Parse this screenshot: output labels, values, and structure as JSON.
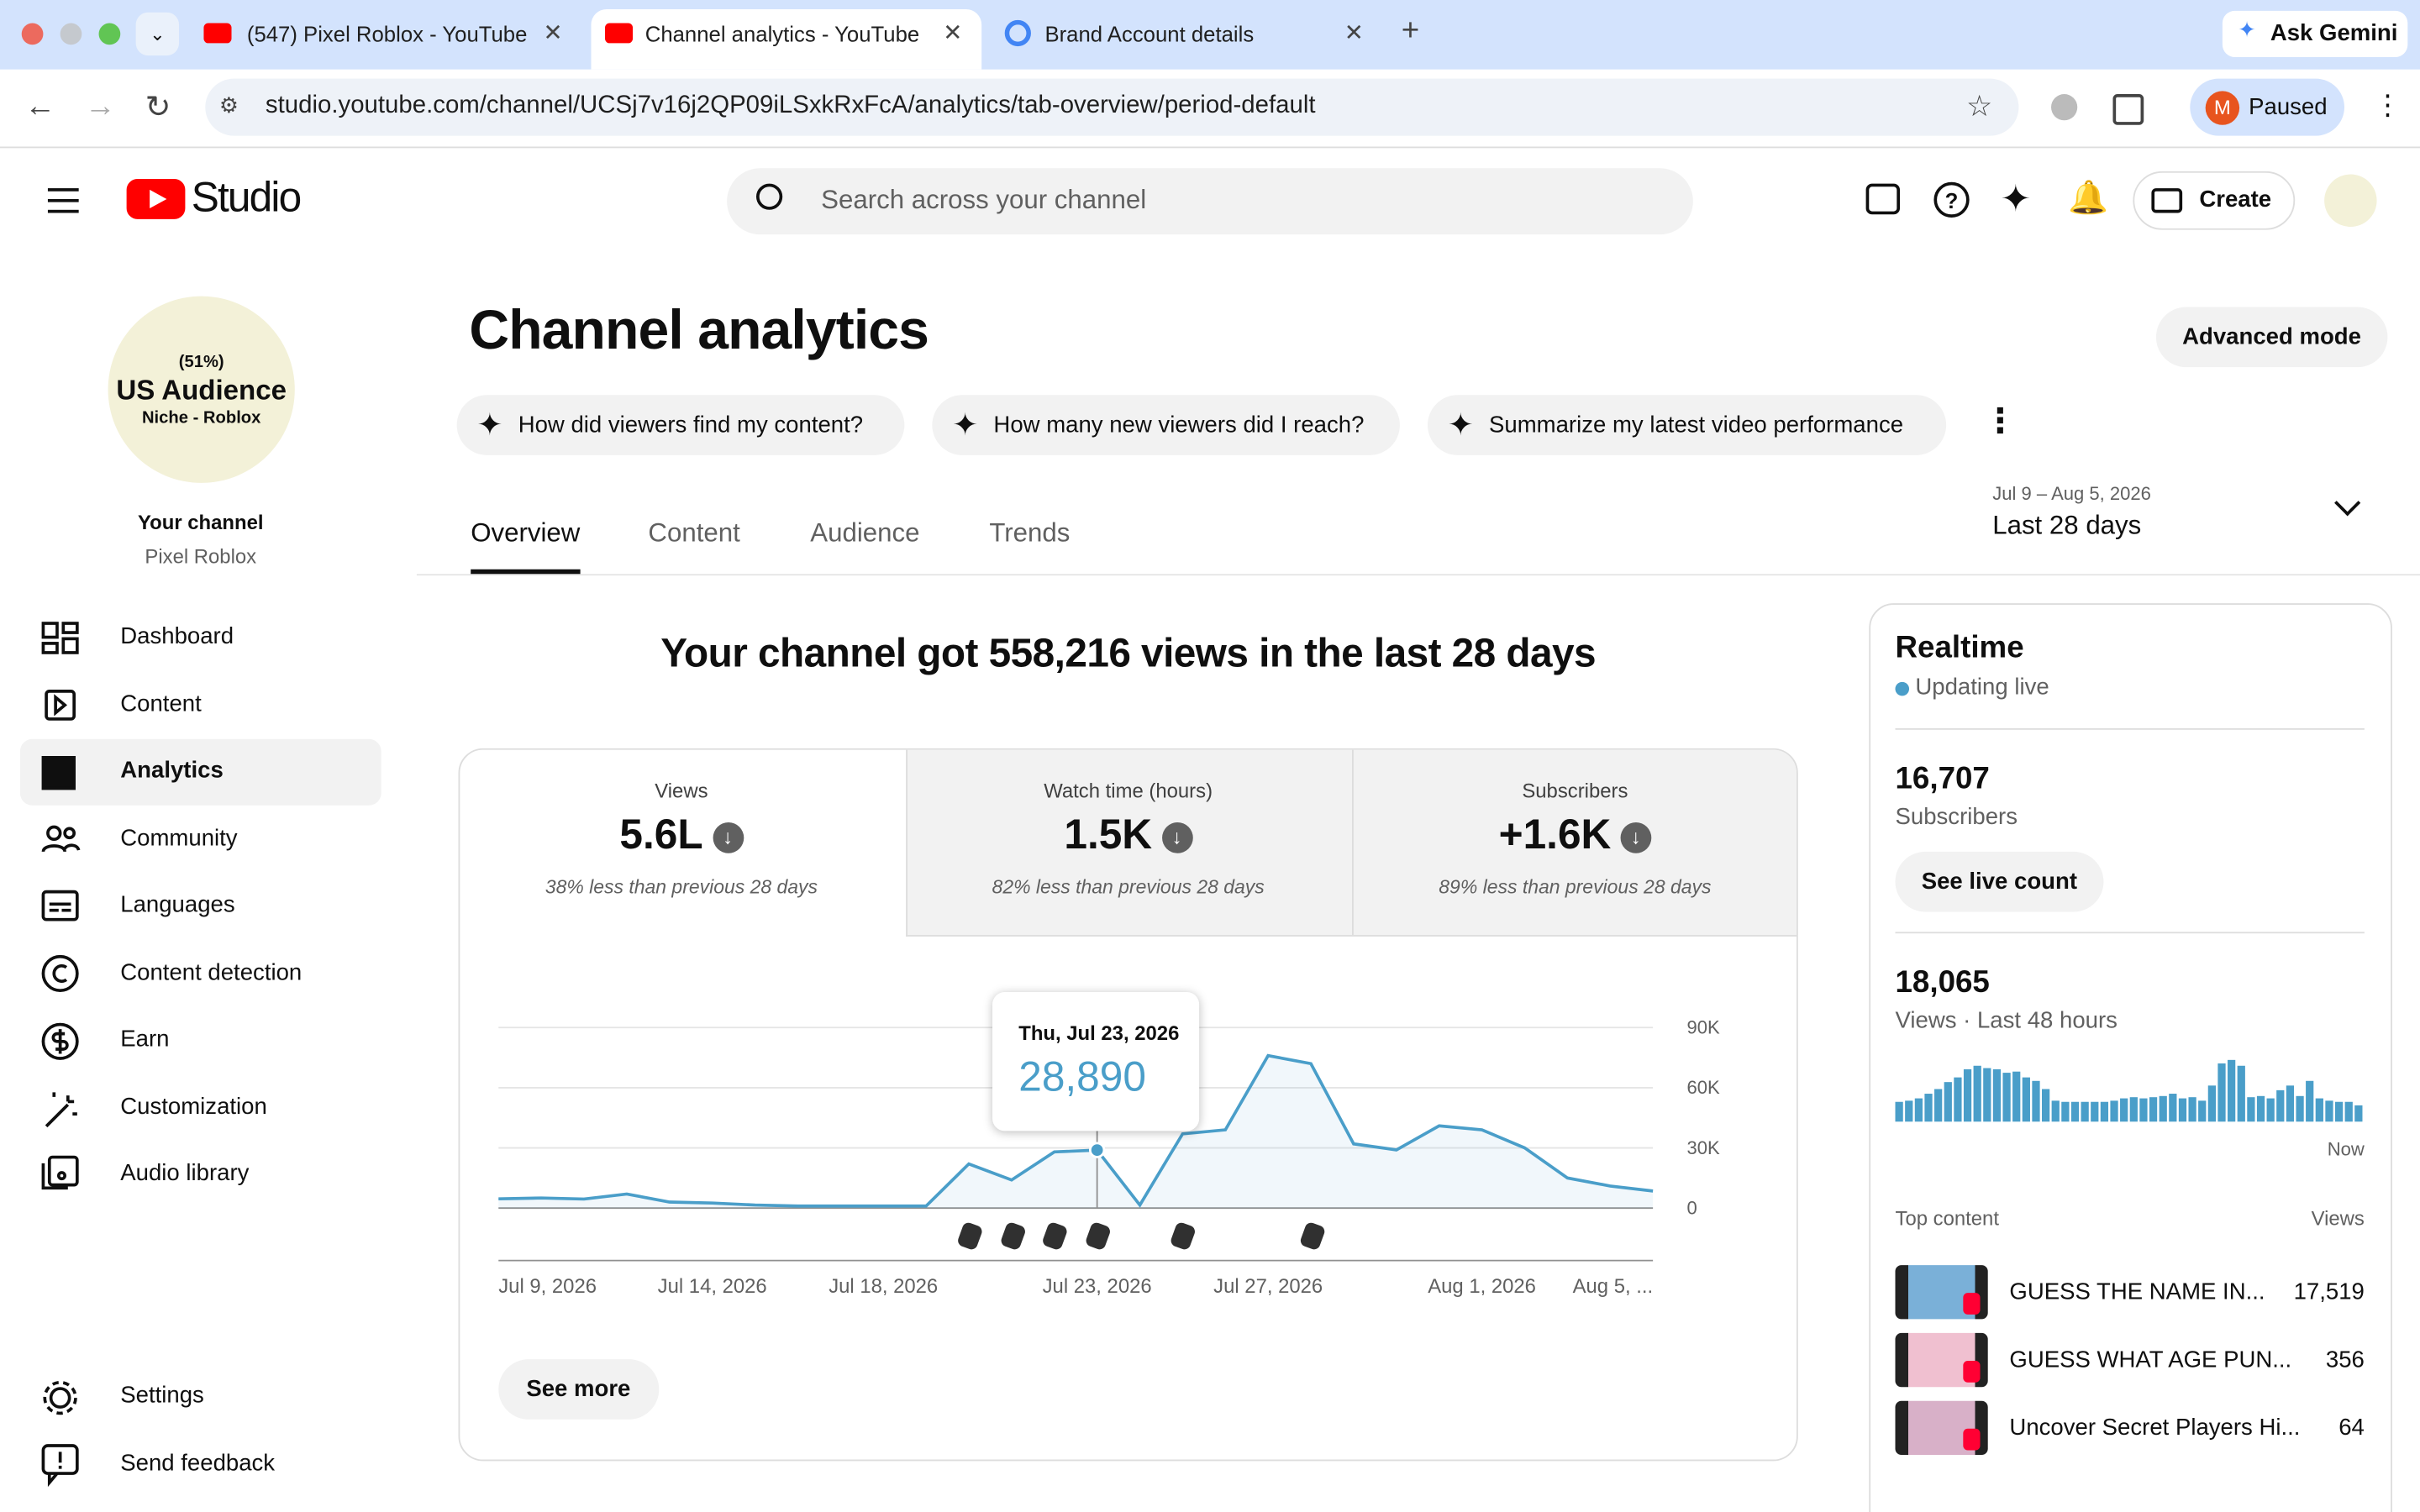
{
  "browser": {
    "tabs": [
      {
        "title": "(547) Pixel Roblox - YouTube"
      },
      {
        "title": "Channel analytics - YouTube Studio"
      },
      {
        "title": "Brand Account details"
      }
    ],
    "ask_gemini": "Ask Gemini",
    "url": "studio.youtube.com/channel/UCSj7v16j2QP09iLSxkRxFcA/analytics/tab-overview/period-default",
    "profile_initial": "M",
    "profile_status": "Paused"
  },
  "header": {
    "logo": "Studio",
    "search_placeholder": "Search across your channel",
    "create": "Create"
  },
  "sidebar": {
    "avatar": {
      "share": "(51%)",
      "title": "US Audience",
      "subtitle": "Niche - Roblox"
    },
    "your_channel": "Your channel",
    "channel_name": "Pixel Roblox",
    "nav": [
      "Dashboard",
      "Content",
      "Analytics",
      "Community",
      "Languages",
      "Content detection",
      "Earn",
      "Customization",
      "Audio library"
    ],
    "bottom": [
      "Settings",
      "Send feedback"
    ]
  },
  "main": {
    "title": "Channel analytics",
    "advanced_mode": "Advanced mode",
    "suggestions": [
      "How did viewers find my content?",
      "How many new viewers did I reach?",
      "Summarize my latest video performance"
    ],
    "tabs": [
      "Overview",
      "Content",
      "Audience",
      "Trends"
    ],
    "date_range": "Jul 9 – Aug 5, 2026",
    "period": "Last 28 days",
    "headline": "Your channel got 558,216 views in the last 28 days",
    "metrics": [
      {
        "label": "Views",
        "value": "5.6L",
        "note": "38% less than previous 28 days"
      },
      {
        "label": "Watch time (hours)",
        "value": "1.5K",
        "note": "82% less than previous 28 days"
      },
      {
        "label": "Subscribers",
        "value": "+1.6K",
        "note": "89% less than previous 28 days"
      }
    ],
    "see_more": "See more"
  },
  "realtime": {
    "title": "Realtime",
    "status": "Updating live",
    "subscribers": "16,707",
    "subscribers_label": "Subscribers",
    "see_live_count": "See live count",
    "views": "18,065",
    "views_label": "Views · Last 48 hours",
    "top_content": "Top content",
    "views_header": "Views",
    "items": [
      {
        "title": "GUESS THE NAME IN...",
        "views": "17,519"
      },
      {
        "title": "GUESS WHAT AGE PUN...",
        "views": "356"
      },
      {
        "title": "Uncover Secret Players Hi...",
        "views": "64"
      }
    ]
  },
  "chart_data": [
    {
      "type": "line",
      "color": "#4a9ec9",
      "categories": [
        "Jul 9, 2026",
        null,
        null,
        null,
        null,
        "Jul 14, 2026",
        null,
        null,
        null,
        "Jul 18, 2026",
        null,
        null,
        null,
        null,
        "Jul 23, 2026",
        null,
        null,
        null,
        "Jul 27, 2026",
        null,
        null,
        null,
        null,
        "Aug 1, 2026",
        null,
        null,
        null,
        "Aug 5, ..."
      ],
      "values": [
        4600,
        5000,
        4500,
        7000,
        3000,
        2500,
        1500,
        1000,
        1000,
        1000,
        1000,
        22000,
        14000,
        28000,
        28890,
        1500,
        37000,
        39000,
        76000,
        72000,
        32000,
        29000,
        41000,
        39000,
        30000,
        15000,
        11000,
        8500
      ],
      "value_labels": [
        null,
        null,
        null,
        null,
        null,
        null,
        null,
        null,
        null,
        null,
        null,
        null,
        null,
        null,
        "28,890",
        null,
        null,
        null,
        null,
        null,
        null,
        null,
        null,
        null,
        null,
        null,
        null,
        null
      ],
      "tooltip_title": "Thu, Jul 23, 2026",
      "ylim": [
        0,
        90000
      ],
      "yticks": [
        0,
        {
          "value": 30000,
          "label": "30K"
        },
        {
          "value": 60000,
          "label": "60K"
        },
        {
          "value": 90000,
          "label": "90K"
        }
      ],
      "grid": true
    },
    {
      "type": "bar",
      "color": "#4a9ec9",
      "x_label": "Now",
      "values": [
        170,
        180,
        200,
        240,
        280,
        340,
        380,
        450,
        480,
        460,
        450,
        420,
        430,
        380,
        350,
        280,
        180,
        170,
        170,
        170,
        170,
        170,
        180,
        200,
        210,
        200,
        210,
        220,
        240,
        200,
        210,
        180,
        310,
        500,
        530,
        480,
        210,
        220,
        200,
        270,
        310,
        220,
        350,
        200,
        180,
        170,
        170,
        140
      ]
    }
  ]
}
